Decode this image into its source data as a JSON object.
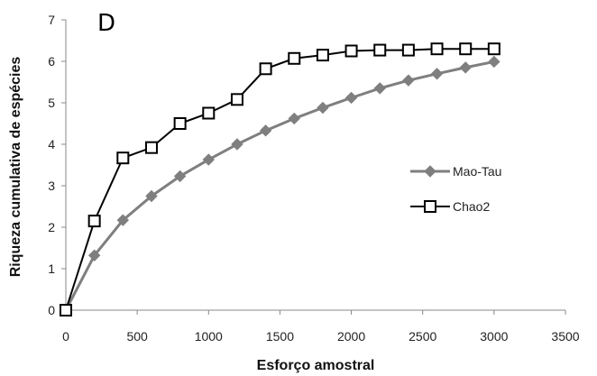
{
  "panel_label": "D",
  "chart_data": {
    "type": "line",
    "title": "",
    "xlabel": "Esforço amostral",
    "ylabel": "Riqueza cumulativa de espécies",
    "xlim": [
      0,
      3500
    ],
    "ylim": [
      0,
      7
    ],
    "xticks": [
      "0",
      "500",
      "1000",
      "1500",
      "2000",
      "2500",
      "3000",
      "3500"
    ],
    "yticks": [
      "0",
      "1",
      "2",
      "3",
      "4",
      "5",
      "6",
      "7"
    ],
    "grid": false,
    "legend_position": "right",
    "x": [
      0,
      200,
      400,
      600,
      800,
      1000,
      1200,
      1400,
      1600,
      1800,
      2000,
      2200,
      2400,
      2600,
      2800,
      3000
    ],
    "series": [
      {
        "name": "Mao-Tau",
        "marker": "diamond",
        "color": "#7f7f7f",
        "values": [
          0,
          1.32,
          2.17,
          2.75,
          3.23,
          3.63,
          4.0,
          4.33,
          4.62,
          4.88,
          5.12,
          5.35,
          5.54,
          5.7,
          5.85,
          5.99
        ]
      },
      {
        "name": "Chao2",
        "marker": "square",
        "color": "#000000",
        "values": [
          0,
          2.15,
          3.67,
          3.92,
          4.5,
          4.75,
          5.08,
          5.82,
          6.07,
          6.15,
          6.25,
          6.27,
          6.27,
          6.3,
          6.3,
          6.3
        ]
      }
    ]
  }
}
